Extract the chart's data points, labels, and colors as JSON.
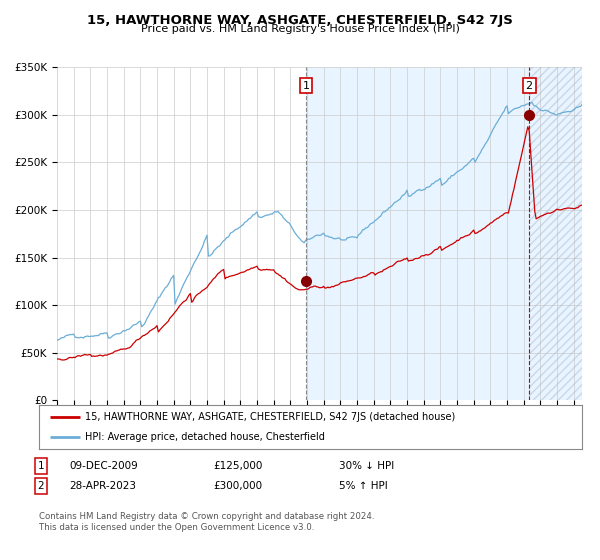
{
  "title": "15, HAWTHORNE WAY, ASHGATE, CHESTERFIELD, S42 7JS",
  "subtitle": "Price paid vs. HM Land Registry's House Price Index (HPI)",
  "footer": "Contains HM Land Registry data © Crown copyright and database right 2024.\nThis data is licensed under the Open Government Licence v3.0.",
  "legend_line1": "15, HAWTHORNE WAY, ASHGATE, CHESTERFIELD, S42 7JS (detached house)",
  "legend_line2": "HPI: Average price, detached house, Chesterfield",
  "annotation1_label": "1",
  "annotation1_date": "09-DEC-2009",
  "annotation1_price": "£125,000",
  "annotation1_hpi": "30% ↓ HPI",
  "annotation2_label": "2",
  "annotation2_date": "28-APR-2023",
  "annotation2_price": "£300,000",
  "annotation2_hpi": "5% ↑ HPI",
  "xmin": 1995.0,
  "xmax": 2026.5,
  "ymin": 0,
  "ymax": 350000,
  "yticks": [
    0,
    50000,
    100000,
    150000,
    200000,
    250000,
    300000,
    350000
  ],
  "ytick_labels": [
    "£0",
    "£50K",
    "£100K",
    "£150K",
    "£200K",
    "£250K",
    "£300K",
    "£350K"
  ],
  "hpi_color": "#6baed6",
  "price_color": "#cc0000",
  "hpi_fill_color": "#daeeff",
  "background_color": "#ffffff",
  "grid_color": "#cccccc",
  "sale1_x": 2009.94,
  "sale1_y": 125000,
  "sale2_x": 2023.33,
  "sale2_y": 300000,
  "vline1_color": "#888888",
  "vline2_color": "#cc0000",
  "marker_color": "#880000",
  "hatch_region_start": 2009.94,
  "hatch_region_end": 2026.5,
  "hatch_start2": 2023.33,
  "box_edge_color": "#cc0000"
}
